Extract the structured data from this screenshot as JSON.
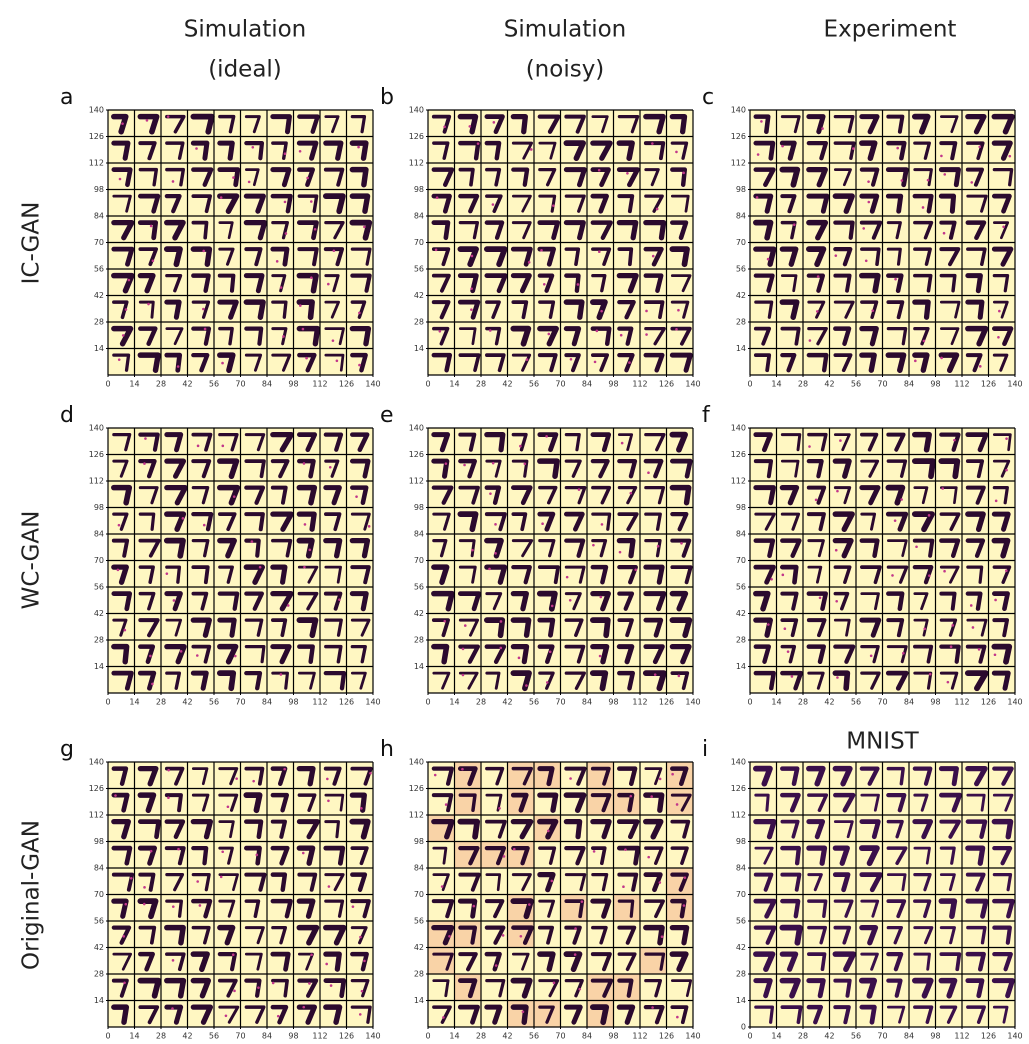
{
  "columns": [
    [
      "Simulation",
      "(ideal)"
    ],
    [
      "Simulation",
      "(noisy)"
    ],
    [
      "Experiment"
    ]
  ],
  "rows": [
    "IC-GAN",
    "WC-GAN",
    "Original-GAN"
  ],
  "panels": [
    {
      "letter": "a",
      "xlim": [
        0,
        140
      ],
      "ylim": [
        0,
        140
      ],
      "xticks": [
        0,
        14,
        28,
        42,
        56,
        70,
        84,
        98,
        112,
        126,
        140
      ],
      "yticks": [
        14,
        28,
        42,
        56,
        70,
        84,
        98,
        112,
        126,
        140
      ]
    },
    {
      "letter": "b",
      "xlim": [
        0,
        140
      ],
      "ylim": [
        0,
        140
      ],
      "xticks": [
        0,
        14,
        28,
        42,
        56,
        70,
        84,
        98,
        112,
        126,
        140
      ],
      "yticks": [
        14,
        28,
        42,
        56,
        70,
        84,
        98,
        112,
        126,
        140
      ]
    },
    {
      "letter": "c",
      "xlim": [
        0,
        140
      ],
      "ylim": [
        0,
        140
      ],
      "xticks": [
        0,
        14,
        28,
        42,
        56,
        70,
        84,
        98,
        112,
        126,
        140
      ],
      "yticks": [
        14,
        28,
        42,
        56,
        70,
        84,
        98,
        112,
        126,
        140
      ]
    },
    {
      "letter": "d",
      "xlim": [
        0,
        140
      ],
      "ylim": [
        0,
        140
      ],
      "xticks": [
        0,
        14,
        28,
        42,
        56,
        70,
        84,
        98,
        112,
        126,
        140
      ],
      "yticks": [
        14,
        28,
        42,
        56,
        70,
        84,
        98,
        112,
        126,
        140
      ]
    },
    {
      "letter": "e",
      "xlim": [
        0,
        140
      ],
      "ylim": [
        0,
        140
      ],
      "xticks": [
        0,
        14,
        28,
        42,
        56,
        70,
        84,
        98,
        112,
        126,
        140
      ],
      "yticks": [
        14,
        28,
        42,
        56,
        70,
        84,
        98,
        112,
        126,
        140
      ]
    },
    {
      "letter": "f",
      "xlim": [
        0,
        140
      ],
      "ylim": [
        0,
        140
      ],
      "xticks": [
        0,
        14,
        28,
        42,
        56,
        70,
        84,
        98,
        112,
        126,
        140
      ],
      "yticks": [
        14,
        28,
        42,
        56,
        70,
        84,
        98,
        112,
        126,
        140
      ]
    },
    {
      "letter": "g",
      "xlim": [
        0,
        140
      ],
      "ylim": [
        0,
        140
      ],
      "xticks": [
        0,
        14,
        28,
        42,
        56,
        70,
        84,
        98,
        112,
        126,
        140
      ],
      "yticks": [
        14,
        28,
        42,
        56,
        70,
        84,
        98,
        112,
        126,
        140
      ]
    },
    {
      "letter": "h",
      "xlim": [
        0,
        140
      ],
      "ylim": [
        0,
        140
      ],
      "xticks": [
        0,
        14,
        28,
        42,
        56,
        70,
        84,
        98,
        112,
        126,
        140
      ],
      "yticks": [
        14,
        28,
        42,
        56,
        70,
        84,
        98,
        112,
        126,
        140
      ]
    },
    {
      "letter": "i",
      "title": "MNIST",
      "xlim": [
        0,
        140
      ],
      "ylim": [
        0,
        140
      ],
      "xticks": [
        0,
        14,
        28,
        42,
        56,
        70,
        84,
        98,
        112,
        126,
        140
      ],
      "yticks": [
        0,
        14,
        28,
        42,
        56,
        70,
        84,
        98,
        112,
        126,
        140
      ]
    }
  ]
}
